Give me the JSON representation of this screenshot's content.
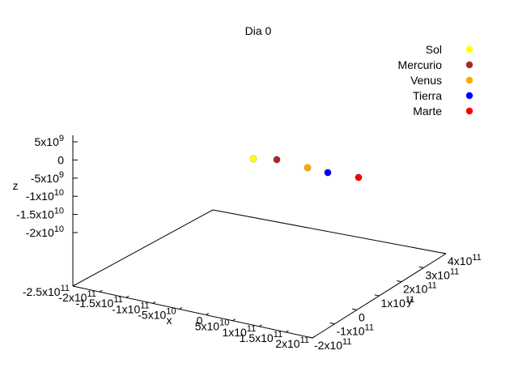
{
  "chart_data": {
    "type": "scatter",
    "title": "Dia 0",
    "xlabel": "x",
    "ylabel": "y",
    "zlabel": "z",
    "xlim": [
      -250000000000.0,
      200000000000.0
    ],
    "ylim": [
      -200000000000.0,
      400000000000.0
    ],
    "zlim": [
      -20000000000.0,
      5000000000.0
    ],
    "legend_position": "top-right",
    "x_ticks": [
      {
        "m": "-2.5x10",
        "e": "11"
      },
      {
        "m": "-2x10",
        "e": "11"
      },
      {
        "m": "-1.5x10",
        "e": "11"
      },
      {
        "m": "-1x10",
        "e": "11"
      },
      {
        "m": "-5x10",
        "e": "10"
      },
      {
        "m": "0",
        "e": ""
      },
      {
        "m": "5x10",
        "e": "10"
      },
      {
        "m": "1x10",
        "e": "11"
      },
      {
        "m": "1.5x10",
        "e": "11"
      },
      {
        "m": "2x10",
        "e": "11"
      }
    ],
    "y_ticks": [
      {
        "m": "-2x10",
        "e": "11"
      },
      {
        "m": "-1x10",
        "e": "11"
      },
      {
        "m": "0",
        "e": ""
      },
      {
        "m": "1x10",
        "e": "11"
      },
      {
        "m": "2x10",
        "e": "11"
      },
      {
        "m": "3x10",
        "e": "11"
      },
      {
        "m": "4x10",
        "e": "11"
      }
    ],
    "z_ticks": [
      {
        "m": "5x10",
        "e": "9"
      },
      {
        "m": "0",
        "e": ""
      },
      {
        "m": "-5x10",
        "e": "9"
      },
      {
        "m": "-1x10",
        "e": "10"
      },
      {
        "m": "-1.5x10",
        "e": "10"
      },
      {
        "m": "-2x10",
        "e": "10"
      }
    ],
    "series": [
      {
        "name": "Sol",
        "color": "#ffff00",
        "x": 0,
        "y": 0,
        "z": 0
      },
      {
        "name": "Mercurio",
        "color": "#a52a2a",
        "x": 58000000000.0,
        "y": 0,
        "z": 0
      },
      {
        "name": "Venus",
        "color": "#ffa500",
        "x": 108000000000.0,
        "y": 0,
        "z": 0
      },
      {
        "name": "Tierra",
        "color": "#0000ff",
        "x": 150000000000.0,
        "y": 0,
        "z": 0
      },
      {
        "name": "Marte",
        "color": "#ff0000",
        "x": 228000000000.0,
        "y": 0,
        "z": 0
      }
    ]
  }
}
